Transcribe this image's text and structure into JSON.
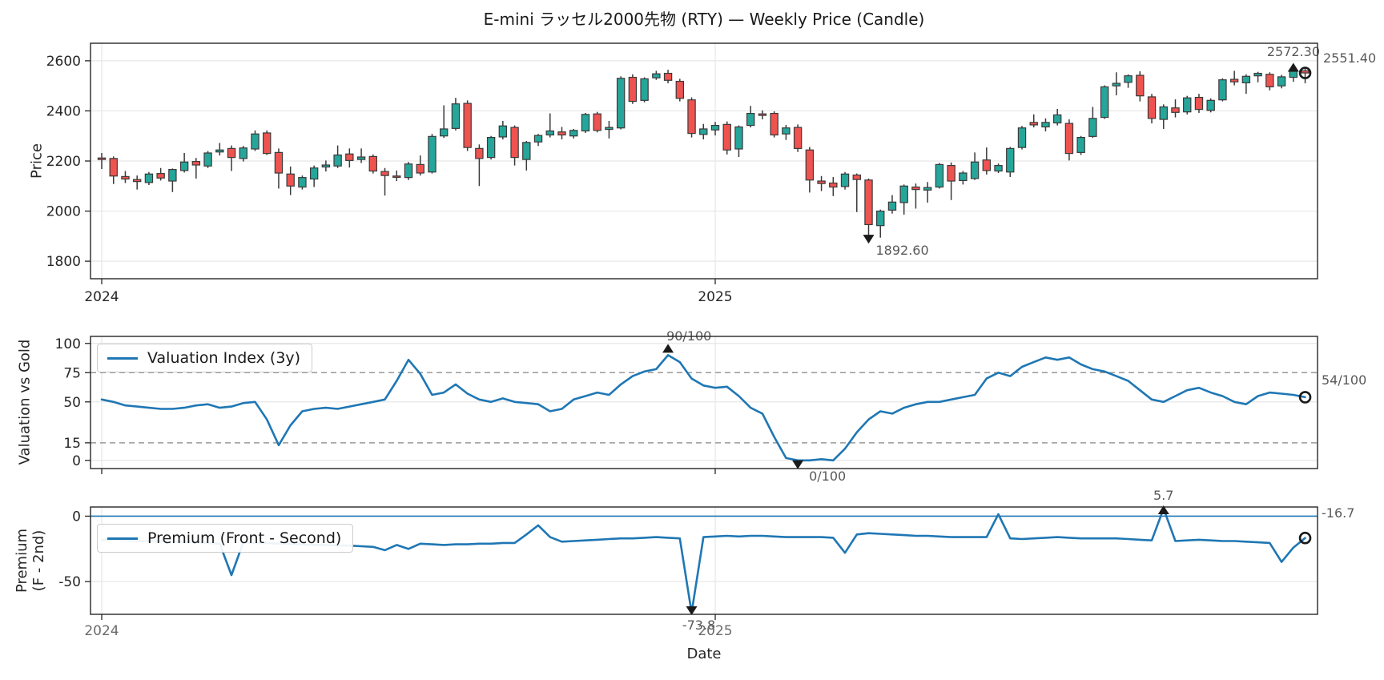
{
  "title": "E-mini ラッセル2000先物 (RTY) — Weekly Price (Candle)",
  "xlabel": "Date",
  "x_axis": {
    "total_weeks": 103,
    "ticks": [
      {
        "week": 0,
        "label": "2024"
      },
      {
        "week": 52,
        "label": "2025"
      }
    ]
  },
  "colors": {
    "up": "#26a69a",
    "down": "#ef5350",
    "candle_edge": "#3a3a3a",
    "line": "#1f77b4",
    "zero_line": "#1f77b4",
    "grid": "#e7e7e7",
    "threshold_dash": "#999999",
    "marker": "#1a1a1a",
    "annotation": "#595959",
    "spine": "#262626",
    "tick_text": "#262626"
  },
  "chart_data": [
    {
      "type": "candlestick",
      "name": "price",
      "ylabel": "Price",
      "ylim": [
        1730,
        2670
      ],
      "yticks": [
        {
          "v": 2600,
          "label": "2600"
        },
        {
          "v": 2400,
          "label": "2400"
        },
        {
          "v": 2200,
          "label": "2200"
        },
        {
          "v": 2000,
          "label": "2000"
        },
        {
          "v": 1800,
          "label": "1800"
        }
      ],
      "annotations": {
        "high": {
          "text": "2572.30",
          "week": 101,
          "value": 2572.3
        },
        "low": {
          "text": "1892.60",
          "week": 65,
          "value": 1892.6
        },
        "last": {
          "text": "2551.40",
          "week": 102,
          "value": 2551.4
        }
      },
      "ohlc": [
        [
          2212,
          2232,
          2168,
          2206
        ],
        [
          2210,
          2218,
          2108,
          2140
        ],
        [
          2138,
          2160,
          2112,
          2128
        ],
        [
          2126,
          2142,
          2086,
          2118
        ],
        [
          2114,
          2156,
          2104,
          2148
        ],
        [
          2150,
          2172,
          2122,
          2132
        ],
        [
          2120,
          2170,
          2076,
          2166
        ],
        [
          2162,
          2232,
          2154,
          2196
        ],
        [
          2198,
          2212,
          2130,
          2184
        ],
        [
          2180,
          2240,
          2172,
          2232
        ],
        [
          2236,
          2272,
          2222,
          2244
        ],
        [
          2250,
          2262,
          2160,
          2214
        ],
        [
          2210,
          2260,
          2198,
          2252
        ],
        [
          2248,
          2322,
          2240,
          2308
        ],
        [
          2312,
          2322,
          2224,
          2230
        ],
        [
          2234,
          2250,
          2090,
          2152
        ],
        [
          2148,
          2178,
          2064,
          2100
        ],
        [
          2096,
          2142,
          2086,
          2134
        ],
        [
          2128,
          2182,
          2096,
          2172
        ],
        [
          2176,
          2202,
          2158,
          2184
        ],
        [
          2180,
          2262,
          2172,
          2224
        ],
        [
          2228,
          2250,
          2174,
          2202
        ],
        [
          2206,
          2250,
          2192,
          2216
        ],
        [
          2218,
          2226,
          2150,
          2160
        ],
        [
          2158,
          2172,
          2062,
          2142
        ],
        [
          2140,
          2162,
          2120,
          2136
        ],
        [
          2134,
          2196,
          2124,
          2188
        ],
        [
          2186,
          2222,
          2142,
          2152
        ],
        [
          2156,
          2308,
          2150,
          2298
        ],
        [
          2300,
          2422,
          2292,
          2328
        ],
        [
          2330,
          2452,
          2322,
          2428
        ],
        [
          2430,
          2442,
          2240,
          2254
        ],
        [
          2250,
          2266,
          2100,
          2210
        ],
        [
          2214,
          2300,
          2206,
          2294
        ],
        [
          2296,
          2360,
          2286,
          2340
        ],
        [
          2334,
          2342,
          2182,
          2214
        ],
        [
          2206,
          2280,
          2162,
          2274
        ],
        [
          2276,
          2308,
          2260,
          2302
        ],
        [
          2304,
          2390,
          2294,
          2320
        ],
        [
          2316,
          2336,
          2286,
          2304
        ],
        [
          2300,
          2328,
          2290,
          2322
        ],
        [
          2320,
          2392,
          2312,
          2386
        ],
        [
          2388,
          2396,
          2314,
          2322
        ],
        [
          2326,
          2360,
          2290,
          2334
        ],
        [
          2332,
          2538,
          2326,
          2530
        ],
        [
          2534,
          2546,
          2428,
          2438
        ],
        [
          2442,
          2534,
          2434,
          2528
        ],
        [
          2532,
          2560,
          2524,
          2548
        ],
        [
          2550,
          2564,
          2510,
          2522
        ],
        [
          2518,
          2528,
          2438,
          2450
        ],
        [
          2444,
          2454,
          2294,
          2310
        ],
        [
          2306,
          2348,
          2286,
          2328
        ],
        [
          2324,
          2356,
          2302,
          2342
        ],
        [
          2346,
          2358,
          2226,
          2244
        ],
        [
          2248,
          2342,
          2216,
          2336
        ],
        [
          2342,
          2420,
          2334,
          2390
        ],
        [
          2388,
          2402,
          2366,
          2382
        ],
        [
          2390,
          2398,
          2294,
          2304
        ],
        [
          2308,
          2344,
          2284,
          2332
        ],
        [
          2334,
          2346,
          2236,
          2250
        ],
        [
          2244,
          2256,
          2074,
          2124
        ],
        [
          2120,
          2140,
          2080,
          2110
        ],
        [
          2112,
          2136,
          2060,
          2096
        ],
        [
          2098,
          2156,
          2086,
          2148
        ],
        [
          2144,
          2150,
          1996,
          2126
        ],
        [
          2124,
          2130,
          1892.6,
          1946
        ],
        [
          1942,
          2006,
          1894,
          2000
        ],
        [
          2004,
          2064,
          1990,
          2036
        ],
        [
          2034,
          2106,
          1986,
          2100
        ],
        [
          2096,
          2110,
          2010,
          2086
        ],
        [
          2084,
          2116,
          2034,
          2094
        ],
        [
          2096,
          2192,
          2090,
          2186
        ],
        [
          2182,
          2194,
          2044,
          2120
        ],
        [
          2122,
          2160,
          2106,
          2152
        ],
        [
          2130,
          2234,
          2124,
          2196
        ],
        [
          2204,
          2254,
          2146,
          2162
        ],
        [
          2160,
          2190,
          2152,
          2182
        ],
        [
          2156,
          2256,
          2136,
          2250
        ],
        [
          2254,
          2340,
          2246,
          2332
        ],
        [
          2354,
          2386,
          2334,
          2344
        ],
        [
          2336,
          2370,
          2318,
          2354
        ],
        [
          2352,
          2408,
          2342,
          2384
        ],
        [
          2350,
          2366,
          2202,
          2230
        ],
        [
          2234,
          2300,
          2224,
          2294
        ],
        [
          2298,
          2416,
          2292,
          2370
        ],
        [
          2374,
          2502,
          2368,
          2496
        ],
        [
          2500,
          2554,
          2462,
          2510
        ],
        [
          2514,
          2546,
          2492,
          2540
        ],
        [
          2542,
          2558,
          2438,
          2460
        ],
        [
          2456,
          2468,
          2350,
          2370
        ],
        [
          2366,
          2426,
          2328,
          2416
        ],
        [
          2412,
          2446,
          2374,
          2394
        ],
        [
          2396,
          2460,
          2386,
          2452
        ],
        [
          2454,
          2468,
          2392,
          2406
        ],
        [
          2402,
          2450,
          2394,
          2442
        ],
        [
          2444,
          2530,
          2438,
          2524
        ],
        [
          2526,
          2560,
          2502,
          2516
        ],
        [
          2512,
          2546,
          2468,
          2538
        ],
        [
          2540,
          2556,
          2514,
          2550
        ],
        [
          2546,
          2554,
          2482,
          2496
        ],
        [
          2500,
          2544,
          2490,
          2536
        ],
        [
          2534,
          2572.3,
          2516,
          2558
        ],
        [
          2560,
          2568,
          2510,
          2551.4
        ]
      ]
    },
    {
      "type": "line",
      "name": "valuation",
      "ylabel": "Valuation vs Gold",
      "legend": "Valuation Index (3y)",
      "ylim": [
        -7,
        106
      ],
      "yticks": [
        {
          "v": 100,
          "label": "100"
        },
        {
          "v": 75,
          "label": "75"
        },
        {
          "v": 50,
          "label": "50"
        },
        {
          "v": 15,
          "label": "15"
        },
        {
          "v": 0,
          "label": "0"
        }
      ],
      "thresholds": [
        75,
        15
      ],
      "annotations": {
        "max": {
          "text": "90/100",
          "week": 48,
          "value": 90
        },
        "min": {
          "text": "0/100",
          "week": 59,
          "value": 0
        },
        "last": {
          "text": "54/100",
          "week": 102,
          "value": 54
        }
      },
      "values": [
        52,
        50,
        47,
        46,
        45,
        44,
        44,
        45,
        47,
        48,
        45,
        46,
        49,
        50,
        35,
        13,
        30,
        42,
        44,
        45,
        44,
        46,
        48,
        50,
        52,
        68,
        86,
        74,
        56,
        58,
        65,
        57,
        52,
        50,
        53,
        50,
        49,
        48,
        42,
        44,
        52,
        55,
        58,
        56,
        65,
        72,
        76,
        78,
        90,
        84,
        70,
        64,
        62,
        63,
        55,
        45,
        40,
        20,
        2,
        0,
        0,
        1,
        0,
        10,
        24,
        35,
        42,
        40,
        45,
        48,
        50,
        50,
        52,
        54,
        56,
        70,
        75,
        72,
        80,
        84,
        88,
        86,
        88,
        82,
        78,
        76,
        72,
        68,
        60,
        52,
        50,
        55,
        60,
        62,
        58,
        55,
        50,
        48,
        55,
        58,
        57,
        56,
        54
      ]
    },
    {
      "type": "line",
      "name": "premium",
      "ylabel_lines": [
        "Premium",
        "(F - 2nd)"
      ],
      "legend": "Premium (Front - Second)",
      "ylim": [
        -75,
        7
      ],
      "yticks": [
        {
          "v": 0,
          "label": "0"
        },
        {
          "v": -50,
          "label": "-50"
        }
      ],
      "zero_line": 0,
      "annotations": {
        "max": {
          "text": "5.7",
          "week": 90,
          "value": 5.7
        },
        "min": {
          "text": "-73.8",
          "week": 50,
          "value": -73.8
        },
        "last": {
          "text": "-16.7",
          "week": 102,
          "value": -16.7
        }
      },
      "values": [
        -18,
        -18,
        -18.5,
        -19,
        -19,
        -19,
        -19.5,
        -19.5,
        -20,
        -20.5,
        -21,
        -45,
        -20,
        -20.5,
        -20.5,
        -21,
        -21,
        -21.5,
        -22,
        -22,
        -22.5,
        -22.5,
        -23,
        -23.5,
        -26,
        -22,
        -25,
        -21,
        -21.5,
        -22,
        -21.5,
        -21.5,
        -21,
        -21,
        -20.5,
        -20.5,
        -14,
        -7,
        -16,
        -19.5,
        -19,
        -18.5,
        -18,
        -17.5,
        -17,
        -17,
        -16.5,
        -16,
        -16.5,
        -17,
        -73.8,
        -16,
        -15.5,
        -15,
        -15.5,
        -15,
        -15,
        -15.5,
        -16,
        -16,
        -16,
        -16,
        -16.5,
        -28,
        -14,
        -13,
        -13.5,
        -14,
        -14.5,
        -15,
        -15,
        -15.5,
        -16,
        -16,
        -16,
        -16,
        1.5,
        -17,
        -17.5,
        -17,
        -16.5,
        -16,
        -16.5,
        -17,
        -17,
        -17,
        -17,
        -17.5,
        -18,
        -18.5,
        5.7,
        -19,
        -18.5,
        -18,
        -18.5,
        -19,
        -19,
        -19.5,
        -20,
        -20.5,
        -35,
        -24,
        -16.7
      ]
    }
  ]
}
